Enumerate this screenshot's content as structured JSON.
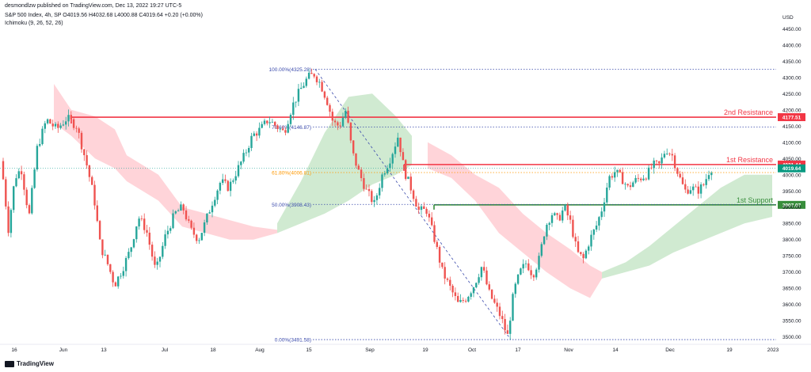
{
  "header": {
    "publish_line": "desmondlzw published on TradingView.com, Dec 13, 2022 19:27 UTC-5",
    "symbol_line": "S&P 500 Index, 4h, SP  O4019.56  H4032.68  L4000.88  C4019.64  +0.20 (+0.00%)",
    "indicator_line": "Ichimoku (9, 26, 52, 26)",
    "currency": "USD"
  },
  "footer": {
    "brand": "TradingView"
  },
  "colors": {
    "up": "#26a69a",
    "down": "#ef5350",
    "cloud_bull": "#c8e6c9",
    "cloud_bear": "#ffcdd2",
    "resistance": "#f23645",
    "support": "#388e3c",
    "fib": "#3949ab",
    "fib_gold": "#ff9800"
  },
  "chart_data": {
    "type": "candlestick",
    "y_axis": {
      "ticks": [
        3500,
        3550,
        3600,
        3650,
        3700,
        3750,
        3800,
        3850,
        3900,
        3950,
        4000,
        4050,
        4100,
        4150,
        4200,
        4250,
        4300,
        4350,
        4400,
        4450
      ],
      "ylim": [
        3482,
        4490
      ]
    },
    "x_axis": {
      "ticks": [
        "16",
        "Jun",
        "13",
        "Jul",
        "18",
        "Aug",
        "15",
        "Sep",
        "19",
        "Oct",
        "17",
        "Nov",
        "14",
        "Dec",
        "19",
        "2023"
      ]
    },
    "levels": [
      {
        "label": "2nd Resistance",
        "value": 4177.51,
        "tag": "4177.51",
        "kind": "resistance"
      },
      {
        "label": "1st Resistance",
        "value": 4031.44,
        "tag": "4031.44",
        "kind": "resistance"
      },
      {
        "label": "1st Support",
        "value": 3907.07,
        "tag": "3907.07",
        "kind": "support"
      }
    ],
    "current_price": {
      "value": 4019.64,
      "tag": "4019.64"
    },
    "fib_levels": [
      {
        "label": "100.00%(4325.28)",
        "value": 4325.28
      },
      {
        "label": "78.60%(4146.87)",
        "value": 4146.87
      },
      {
        "label": "61.80%(4006.81)",
        "value": 4006.81
      },
      {
        "label": "50.00%(3908.43)",
        "value": 3908.43
      },
      {
        "label": "0.00%(3491.58)",
        "value": 3491.58
      }
    ],
    "path_points": [
      [
        0,
        4050
      ],
      [
        5,
        4040
      ],
      [
        14,
        3830
      ],
      [
        22,
        3990
      ],
      [
        30,
        4020
      ],
      [
        40,
        3870
      ],
      [
        50,
        4080
      ],
      [
        62,
        4170
      ],
      [
        75,
        4140
      ],
      [
        88,
        4175
      ],
      [
        100,
        4150
      ],
      [
        112,
        4040
      ],
      [
        122,
        3930
      ],
      [
        130,
        3780
      ],
      [
        140,
        3720
      ],
      [
        148,
        3660
      ],
      [
        158,
        3710
      ],
      [
        168,
        3770
      ],
      [
        178,
        3870
      ],
      [
        188,
        3830
      ],
      [
        200,
        3700
      ],
      [
        212,
        3810
      ],
      [
        224,
        3880
      ],
      [
        234,
        3900
      ],
      [
        244,
        3830
      ],
      [
        254,
        3800
      ],
      [
        262,
        3850
      ],
      [
        272,
        3920
      ],
      [
        282,
        3980
      ],
      [
        292,
        3960
      ],
      [
        302,
        4010
      ],
      [
        312,
        4060
      ],
      [
        322,
        4120
      ],
      [
        332,
        4140
      ],
      [
        342,
        4170
      ],
      [
        352,
        4150
      ],
      [
        362,
        4130
      ],
      [
        372,
        4210
      ],
      [
        382,
        4260
      ],
      [
        392,
        4300
      ],
      [
        400,
        4310
      ],
      [
        408,
        4280
      ],
      [
        416,
        4230
      ],
      [
        424,
        4160
      ],
      [
        432,
        4150
      ],
      [
        440,
        4200
      ],
      [
        448,
        4070
      ],
      [
        456,
        4010
      ],
      [
        466,
        3950
      ],
      [
        476,
        3910
      ],
      [
        486,
        4000
      ],
      [
        496,
        4050
      ],
      [
        506,
        4120
      ],
      [
        514,
        4010
      ],
      [
        522,
        3960
      ],
      [
        532,
        3890
      ],
      [
        542,
        3890
      ],
      [
        552,
        3800
      ],
      [
        562,
        3700
      ],
      [
        572,
        3650
      ],
      [
        582,
        3600
      ],
      [
        592,
        3620
      ],
      [
        602,
        3660
      ],
      [
        612,
        3720
      ],
      [
        620,
        3640
      ],
      [
        628,
        3600
      ],
      [
        636,
        3560
      ],
      [
        644,
        3500
      ],
      [
        652,
        3640
      ],
      [
        660,
        3700
      ],
      [
        668,
        3730
      ],
      [
        676,
        3690
      ],
      [
        684,
        3740
      ],
      [
        692,
        3840
      ],
      [
        700,
        3880
      ],
      [
        708,
        3860
      ],
      [
        716,
        3900
      ],
      [
        724,
        3850
      ],
      [
        732,
        3760
      ],
      [
        740,
        3740
      ],
      [
        748,
        3800
      ],
      [
        756,
        3840
      ],
      [
        764,
        3900
      ],
      [
        772,
        3990
      ],
      [
        780,
        4010
      ],
      [
        788,
        3990
      ],
      [
        796,
        3960
      ],
      [
        804,
        3980
      ],
      [
        812,
        3990
      ],
      [
        820,
        4000
      ],
      [
        828,
        4030
      ],
      [
        836,
        4030
      ],
      [
        844,
        4080
      ],
      [
        852,
        4060
      ],
      [
        860,
        4000
      ],
      [
        868,
        3950
      ],
      [
        876,
        3960
      ],
      [
        884,
        3950
      ],
      [
        892,
        3970
      ],
      [
        900,
        4019.64
      ]
    ],
    "cloud": [
      {
        "x": [
          68,
          90,
          120,
          145,
          160,
          200,
          230,
          260,
          290,
          320,
          350
        ],
        "top": [
          4280,
          4200,
          4180,
          4140,
          4060,
          4000,
          3900,
          3880,
          3860,
          3840,
          3830
        ],
        "bottom": [
          4160,
          4120,
          4050,
          4020,
          3980,
          3920,
          3840,
          3820,
          3800,
          3800,
          3820
        ],
        "kind": "bear"
      },
      {
        "x": [
          350,
          380,
          410,
          440,
          470,
          500,
          520
        ],
        "top": [
          3850,
          3980,
          4130,
          4240,
          4250,
          4180,
          4120
        ],
        "bottom": [
          3820,
          3850,
          3880,
          3920,
          3970,
          4000,
          4030
        ],
        "kind": "bull"
      },
      {
        "x": [
          540,
          570,
          600,
          630,
          660,
          690,
          720,
          745,
          760
        ],
        "top": [
          4100,
          4060,
          4000,
          3960,
          3880,
          3820,
          3770,
          3720,
          3700
        ],
        "bottom": [
          4020,
          3990,
          3920,
          3820,
          3760,
          3700,
          3650,
          3620,
          3680
        ],
        "kind": "bear"
      },
      {
        "x": [
          760,
          790,
          820,
          850,
          880,
          910,
          940,
          975
        ],
        "top": [
          3700,
          3730,
          3780,
          3840,
          3900,
          3960,
          4000,
          4000
        ],
        "bottom": [
          3680,
          3700,
          3720,
          3760,
          3790,
          3820,
          3850,
          3870
        ],
        "kind": "bull"
      }
    ]
  }
}
